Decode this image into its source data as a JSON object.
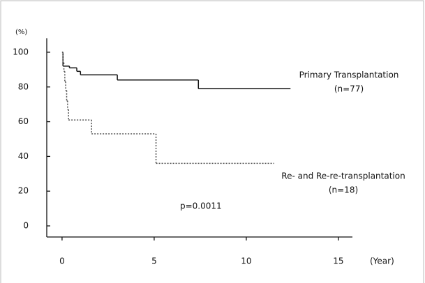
{
  "chart_data": {
    "type": "line",
    "step": true,
    "y_label": "(%)",
    "x_label": "(Year)",
    "annotation": "p=0.0011",
    "series": [
      {
        "name": "Primary Transplantation",
        "n_label": "(n=77)",
        "color": "#111111",
        "dash": "solid",
        "x": [
          0,
          0.05,
          0.4,
          0.8,
          1.0,
          3.0,
          7.4,
          12.4
        ],
        "values": [
          100,
          92,
          91,
          89,
          87,
          84,
          79,
          79
        ]
      },
      {
        "name": "Re- and Re-re-transplantation",
        "n_label": "(n=18)",
        "color": "#555555",
        "dash": "dotted",
        "x": [
          0,
          0.05,
          0.1,
          0.15,
          0.2,
          0.25,
          0.3,
          0.35,
          1.6,
          5.1,
          11.5
        ],
        "values": [
          100,
          94,
          89,
          83,
          78,
          72,
          67,
          61,
          53,
          36,
          36
        ]
      }
    ],
    "xlim": [
      -0.83,
      15.76
    ],
    "ylim": [
      -6.4,
      108
    ],
    "xticks": [
      0,
      5,
      10,
      15
    ],
    "yticks": [
      0,
      20,
      40,
      60,
      80,
      100
    ]
  }
}
